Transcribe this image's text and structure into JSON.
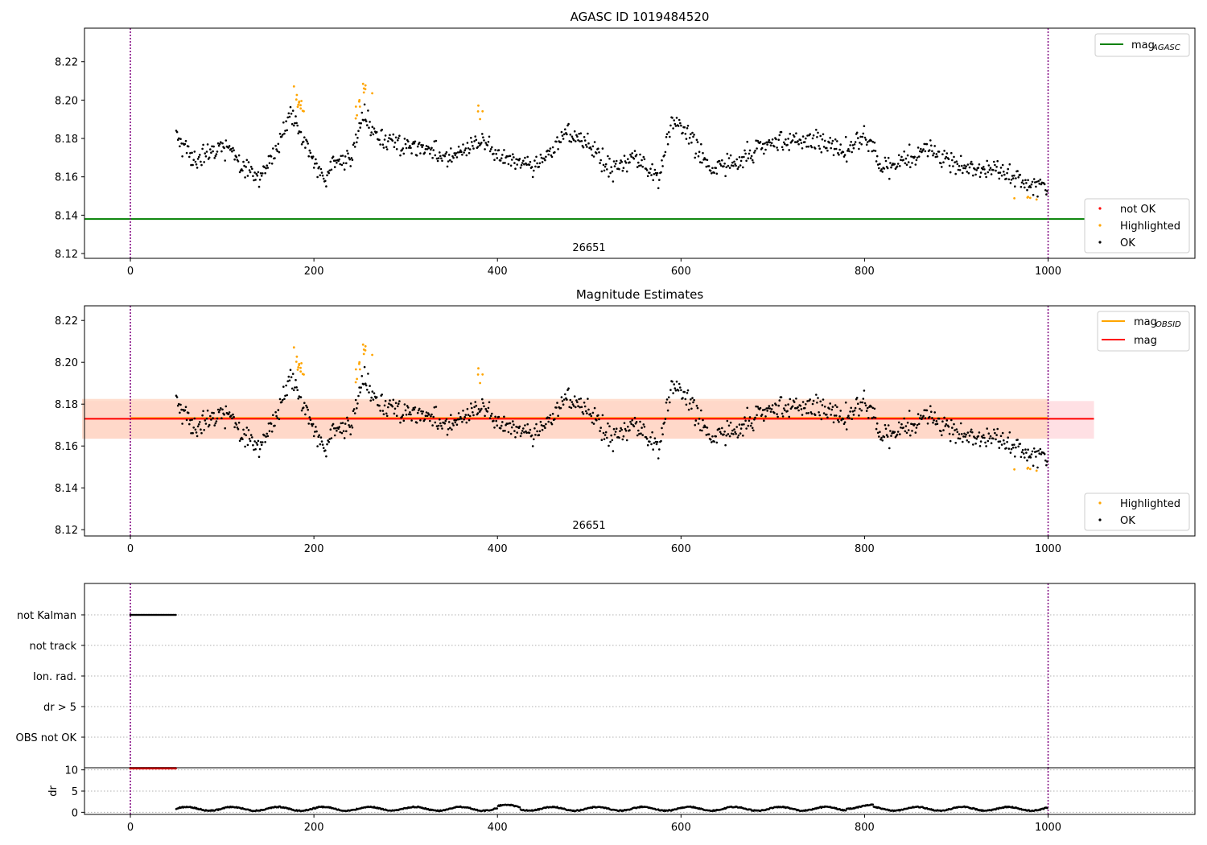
{
  "colors": {
    "ok": "#000000",
    "highlighted": "#ffa500",
    "not_ok": "#ff0000",
    "agasc_line": "#008000",
    "mag_line": "#ff0000",
    "obsid_line": "#ffa500",
    "band_outer": "#ffe0e4",
    "band_inner": "#ffd6c2",
    "vline": "#800080",
    "grid": "#b0b0b0"
  },
  "chart_data": [
    {
      "id": "agasc",
      "type": "scatter",
      "title": "AGASC ID 1019484520",
      "xlim": [
        -50,
        1160
      ],
      "ylim": [
        8.1175,
        8.2375
      ],
      "xticks": [
        "0",
        "200",
        "400",
        "600",
        "800",
        "1000"
      ],
      "xtick_values": [
        0,
        200,
        400,
        600,
        800,
        1000
      ],
      "yticks": [
        "8.12",
        "8.14",
        "8.16",
        "8.18",
        "8.20",
        "8.22"
      ],
      "ytick_values": [
        8.12,
        8.14,
        8.16,
        8.18,
        8.2,
        8.22
      ],
      "obsid_label": "26651",
      "obsid_label_x": 500,
      "vlines": [
        0,
        1000
      ],
      "agasc_mag": 8.138,
      "legend_lines": [
        {
          "label": "mag",
          "sub": "AGASC",
          "color": "#008000"
        }
      ],
      "legend_points": [
        {
          "label": "not OK",
          "color": "#ff0000"
        },
        {
          "label": "Highlighted",
          "color": "#ffa500"
        },
        {
          "label": "OK",
          "color": "#000000"
        }
      ]
    },
    {
      "id": "estimates",
      "type": "scatter",
      "title": "Magnitude Estimates",
      "xlim": [
        -50,
        1160
      ],
      "ylim": [
        8.117,
        8.227
      ],
      "xticks": [
        "0",
        "200",
        "400",
        "600",
        "800",
        "1000"
      ],
      "xtick_values": [
        0,
        200,
        400,
        600,
        800,
        1000
      ],
      "yticks": [
        "8.12",
        "8.14",
        "8.16",
        "8.18",
        "8.20",
        "8.22"
      ],
      "ytick_values": [
        8.12,
        8.14,
        8.16,
        8.18,
        8.2,
        8.22
      ],
      "obsid_label": "26651",
      "obsid_label_x": 500,
      "vlines": [
        0,
        1000
      ],
      "mag_mean": 8.173,
      "mag_band": [
        8.1635,
        8.1815
      ],
      "obsid_band": [
        8.1635,
        8.1825
      ],
      "band_x": [
        -50,
        1050
      ],
      "legend_lines": [
        {
          "label": "mag",
          "sub": "OBSID",
          "color": "#ffa500"
        },
        {
          "label": "mag",
          "sub": "",
          "color": "#ff0000"
        }
      ],
      "legend_points": [
        {
          "label": "Highlighted",
          "color": "#ffa500"
        },
        {
          "label": "OK",
          "color": "#000000"
        }
      ]
    },
    {
      "id": "flags",
      "type": "scatter",
      "categories": [
        "not Kalman",
        "not track",
        "Ion. rad.",
        "dr > 5",
        "OBS not OK"
      ],
      "xlim": [
        -50,
        1160
      ],
      "vlines": [
        0,
        1000
      ],
      "not_kalman_x": [
        0,
        50
      ]
    },
    {
      "id": "dr",
      "type": "scatter",
      "ylabel": "dr",
      "xlim": [
        -50,
        1160
      ],
      "ylim": [
        -0.5,
        10.5
      ],
      "xticks": [
        "0",
        "200",
        "400",
        "600",
        "800",
        "1000"
      ],
      "xtick_values": [
        0,
        200,
        400,
        600,
        800,
        1000
      ],
      "yticks": [
        "0",
        "5",
        "10"
      ],
      "ytick_values": [
        0,
        5,
        10
      ],
      "vlines": [
        0,
        1000
      ],
      "clipped_x": [
        0,
        50
      ],
      "clipped_value": 10
    }
  ],
  "series_model": {
    "x_range": [
      50,
      1000
    ],
    "segments": [
      [
        50,
        8.182
      ],
      [
        70,
        8.168
      ],
      [
        100,
        8.176
      ],
      [
        120,
        8.168
      ],
      [
        140,
        8.16
      ],
      [
        160,
        8.176
      ],
      [
        175,
        8.193
      ],
      [
        190,
        8.178
      ],
      [
        210,
        8.158
      ],
      [
        220,
        8.168
      ],
      [
        240,
        8.17
      ],
      [
        255,
        8.193
      ],
      [
        270,
        8.18
      ],
      [
        300,
        8.177
      ],
      [
        350,
        8.17
      ],
      [
        380,
        8.18
      ],
      [
        400,
        8.172
      ],
      [
        440,
        8.165
      ],
      [
        480,
        8.183
      ],
      [
        500,
        8.176
      ],
      [
        525,
        8.165
      ],
      [
        555,
        8.17
      ],
      [
        575,
        8.156
      ],
      [
        590,
        8.19
      ],
      [
        610,
        8.182
      ],
      [
        630,
        8.165
      ],
      [
        660,
        8.168
      ],
      [
        700,
        8.178
      ],
      [
        750,
        8.178
      ],
      [
        780,
        8.173
      ],
      [
        800,
        8.182
      ],
      [
        820,
        8.165
      ],
      [
        840,
        8.168
      ],
      [
        870,
        8.176
      ],
      [
        900,
        8.166
      ],
      [
        950,
        8.163
      ],
      [
        970,
        8.158
      ],
      [
        1000,
        8.154
      ]
    ],
    "highlighted_ranges": [
      [
        175,
        190
      ],
      [
        245,
        265
      ],
      [
        378,
        384
      ],
      [
        960,
        1000
      ]
    ],
    "highlight_offset": 0.012
  }
}
